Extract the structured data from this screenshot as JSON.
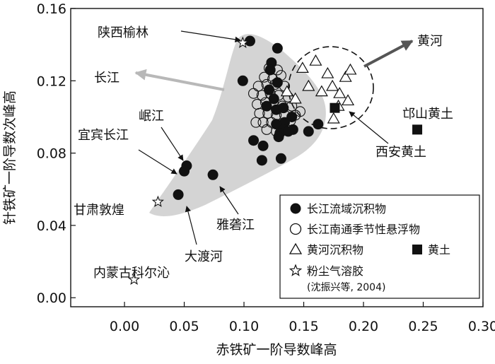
{
  "chart_data": {
    "type": "scatter",
    "xlabel": "赤铁矿一阶导数峰高",
    "ylabel": "针铁矿一阶导数次峰高",
    "xlim": [
      -0.045,
      0.3
    ],
    "ylim": [
      -0.005,
      0.16
    ],
    "x_ticks": [
      "0.00",
      "0.05",
      "0.10",
      "0.15",
      "0.20",
      "0.25",
      "0.30"
    ],
    "y_ticks": [
      "0.00",
      "0.04",
      "0.08",
      "0.12",
      "0.16"
    ],
    "grid": false,
    "legend_position": "bottom-right",
    "colors": {
      "field": "#d4d4d4",
      "marker": "#111111",
      "arrow_grey": "#b8b8b8",
      "arrow_dark": "#555555"
    },
    "regions": [
      {
        "label": "长江",
        "color": "#d4d4d4",
        "style": "filled"
      },
      {
        "label": "黄河",
        "color": "#111111",
        "style": "dashed"
      }
    ],
    "legend": [
      {
        "marker": "filled-circle",
        "label": "长江流域沉积物"
      },
      {
        "marker": "open-circle",
        "label": "长江南通季节性悬浮物"
      },
      {
        "marker": "open-triangle",
        "label": "黄河沉积物"
      },
      {
        "marker": "filled-square",
        "label": "黄土"
      },
      {
        "marker": "open-star",
        "label": "粉尘气溶胶",
        "note": "(沈振兴等, 2004)"
      }
    ],
    "annotations": [
      {
        "text": "陕西榆林",
        "x": 0.099,
        "y": 0.141
      },
      {
        "text": "岷江",
        "x": 0.05,
        "y": 0.073
      },
      {
        "text": "宜宾长江",
        "x": 0.047,
        "y": 0.07
      },
      {
        "text": "甘肃敦煌",
        "x": 0.028,
        "y": 0.053
      },
      {
        "text": "大渡河",
        "x": 0.045,
        "y": 0.057
      },
      {
        "text": "雅砻江",
        "x": 0.074,
        "y": 0.068
      },
      {
        "text": "内蒙古科尔沁",
        "x": 0.008,
        "y": 0.01
      },
      {
        "text": "西安黄土",
        "x": 0.176,
        "y": 0.105
      },
      {
        "text": "邙山黄土",
        "x": 0.245,
        "y": 0.093
      }
    ],
    "series": [
      {
        "name": "长江流域沉积物",
        "marker": "filled-circle",
        "points": [
          [
            0.105,
            0.142
          ],
          [
            0.128,
            0.138
          ],
          [
            0.123,
            0.13
          ],
          [
            0.122,
            0.126
          ],
          [
            0.099,
            0.12
          ],
          [
            0.128,
            0.119
          ],
          [
            0.121,
            0.115
          ],
          [
            0.125,
            0.11
          ],
          [
            0.119,
            0.106
          ],
          [
            0.127,
            0.104
          ],
          [
            0.133,
            0.105
          ],
          [
            0.14,
            0.1
          ],
          [
            0.134,
            0.097
          ],
          [
            0.127,
            0.096
          ],
          [
            0.133,
            0.093
          ],
          [
            0.141,
            0.093
          ],
          [
            0.13,
            0.091
          ],
          [
            0.129,
            0.089
          ],
          [
            0.137,
            0.092
          ],
          [
            0.154,
            0.092
          ],
          [
            0.162,
            0.096
          ],
          [
            0.108,
            0.087
          ],
          [
            0.116,
            0.084
          ],
          [
            0.115,
            0.076
          ],
          [
            0.131,
            0.077
          ],
          [
            0.052,
            0.073
          ],
          [
            0.05,
            0.07
          ],
          [
            0.074,
            0.068
          ],
          [
            0.045,
            0.057
          ]
        ]
      },
      {
        "name": "长江南通季节性悬浮物",
        "marker": "open-circle",
        "points": [
          [
            0.121,
            0.127
          ],
          [
            0.128,
            0.126
          ],
          [
            0.117,
            0.122
          ],
          [
            0.131,
            0.123
          ],
          [
            0.124,
            0.121
          ],
          [
            0.112,
            0.117
          ],
          [
            0.119,
            0.118
          ],
          [
            0.126,
            0.118
          ],
          [
            0.134,
            0.117
          ],
          [
            0.108,
            0.113
          ],
          [
            0.115,
            0.112
          ],
          [
            0.122,
            0.113
          ],
          [
            0.129,
            0.112
          ],
          [
            0.137,
            0.111
          ],
          [
            0.111,
            0.107
          ],
          [
            0.118,
            0.108
          ],
          [
            0.125,
            0.107
          ],
          [
            0.132,
            0.106
          ],
          [
            0.14,
            0.106
          ],
          [
            0.113,
            0.102
          ],
          [
            0.12,
            0.102
          ],
          [
            0.127,
            0.101
          ],
          [
            0.134,
            0.101
          ],
          [
            0.147,
            0.103
          ],
          [
            0.116,
            0.097
          ],
          [
            0.123,
            0.097
          ],
          [
            0.131,
            0.096
          ],
          [
            0.139,
            0.098
          ],
          [
            0.119,
            0.093
          ],
          [
            0.127,
            0.092
          ],
          [
            0.143,
            0.101
          ],
          [
            0.11,
            0.097
          ]
        ]
      },
      {
        "name": "黄河沉积物",
        "marker": "open-triangle",
        "points": [
          [
            0.149,
            0.127
          ],
          [
            0.17,
            0.124
          ],
          [
            0.16,
            0.131
          ],
          [
            0.185,
            0.122
          ],
          [
            0.189,
            0.126
          ],
          [
            0.154,
            0.117
          ],
          [
            0.174,
            0.117
          ],
          [
            0.165,
            0.114
          ],
          [
            0.18,
            0.113
          ],
          [
            0.136,
            0.114
          ],
          [
            0.143,
            0.11
          ],
          [
            0.187,
            0.109
          ],
          [
            0.179,
            0.106
          ],
          [
            0.175,
            0.099
          ]
        ]
      },
      {
        "name": "黄土",
        "marker": "filled-square",
        "points": [
          [
            0.176,
            0.105
          ],
          [
            0.245,
            0.093
          ]
        ]
      },
      {
        "name": "粉尘气溶胶",
        "marker": "open-star",
        "points": [
          [
            0.099,
            0.141
          ],
          [
            0.028,
            0.053
          ],
          [
            0.008,
            0.01
          ]
        ]
      }
    ]
  }
}
